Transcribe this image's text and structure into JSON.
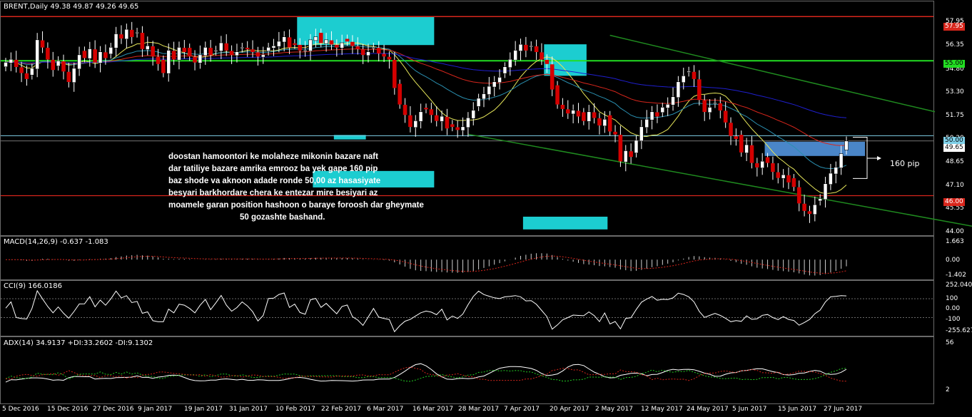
{
  "colors": {
    "bull": "#ffffff",
    "bear": "#d40000",
    "wick": "#ffffff",
    "ma_fast": "#e6e65a",
    "ma_mid": "#2a8fb0",
    "ma_slow": "#d8261c",
    "ma_long": "#1f1fcf",
    "res": "#d8261c",
    "sup_green": "#22dd22",
    "cyan_box": "#1ccdd0",
    "steel_box": "#4a86c8",
    "channel": "#1f8a1f",
    "level_50": "#7fd0e8"
  },
  "main": {
    "title": "BRENT,Daily  49.38 49.87 49.26 49.65",
    "y_ticks": [
      "57.95",
      "56.35",
      "54.80",
      "53.30",
      "51.75",
      "50.20",
      "48.65",
      "47.10",
      "45.55",
      "44.00"
    ],
    "levels": {
      "l5795": "57.95",
      "l5500": "55.00",
      "l5000": "50.00",
      "l4965": "49.65",
      "l4600": "46.00"
    },
    "note_lines": [
      "doostan hamoontori ke molaheze mikonin bazare naft",
      "dar tatiliye  bazare amrika emrooz ba yek gape 160 pip",
      "baz shode va aknoon adade ronde 50,00 az hasasiyate",
      "besyari barkhordare chera ke entezar mire besiyari az",
      "moamele garan  position hashoon o baraye foroosh dar gheymate",
      "50 gozashte bashand."
    ],
    "gap_label": "160 pip"
  },
  "macd": {
    "title": "MACD(14,26,9) -0.637 -1.083",
    "ticks": [
      "1.663",
      "0.00",
      "-1.402"
    ]
  },
  "cci": {
    "title": "CCI(9) 166.0186",
    "ticks": [
      "252.0403",
      "100",
      "0.00",
      "-100",
      "-255.627"
    ]
  },
  "adx": {
    "title": "ADX(14) 34.9137 +DI:33.2602 -DI:9.1302",
    "ticks": [
      "56",
      "2"
    ]
  },
  "dates": [
    "5 Dec 2016",
    "15 Dec 2016",
    "27 Dec 2016",
    "9 Jan 2017",
    "19 Jan 2017",
    "31 Jan 2017",
    "10 Feb 2017",
    "22 Feb 2017",
    "6 Mar 2017",
    "16 Mar 2017",
    "28 Mar 2017",
    "7 Apr 2017",
    "20 Apr 2017",
    "2 May 2017",
    "12 May 2017",
    "24 May 2017",
    "5 Jun 2017",
    "15 Jun 2017",
    "27 Jun 2017"
  ],
  "chart_data": {
    "type": "candlestick",
    "symbol": "BRENT",
    "timeframe": "Daily",
    "last_bar": {
      "open": 49.38,
      "high": 49.87,
      "low": 49.26,
      "close": 49.65
    },
    "y_range": [
      44.0,
      57.95
    ],
    "horizontal_levels": [
      57.95,
      55.0,
      50.0,
      49.65,
      46.0
    ],
    "closes": [
      54.9,
      55.1,
      54.6,
      54.2,
      53.8,
      54.5,
      56.4,
      55.9,
      55.1,
      54.4,
      55.0,
      54.3,
      53.6,
      54.5,
      55.4,
      55.2,
      55.8,
      54.9,
      55.6,
      55.2,
      55.9,
      56.8,
      56.5,
      57.1,
      56.6,
      56.9,
      55.8,
      56.0,
      55.3,
      54.8,
      54.2,
      55.7,
      55.1,
      55.9,
      55.6,
      55.3,
      54.9,
      55.4,
      55.9,
      55.4,
      55.7,
      56.2,
      55.7,
      55.4,
      55.6,
      55.9,
      55.8,
      55.6,
      55.3,
      55.4,
      55.9,
      56.0,
      56.3,
      56.6,
      55.9,
      56.1,
      55.7,
      55.7,
      56.4,
      56.6,
      56.2,
      56.4,
      56.1,
      55.9,
      56.2,
      56.3,
      56.0,
      55.8,
      55.4,
      55.6,
      55.9,
      55.5,
      55.3,
      55.1,
      53.2,
      52.1,
      51.4,
      50.6,
      51.0,
      51.6,
      51.8,
      51.4,
      51.0,
      51.3,
      50.5,
      50.6,
      50.4,
      50.6,
      51.2,
      51.7,
      52.5,
      52.8,
      53.3,
      53.6,
      53.9,
      54.6,
      55.1,
      55.7,
      56.1,
      55.7,
      56.0,
      55.6,
      55.1,
      54.8,
      53.1,
      52.1,
      51.8,
      51.5,
      51.7,
      51.3,
      51.0,
      51.6,
      51.2,
      50.7,
      51.1,
      50.3,
      50.1,
      48.3,
      49.0,
      48.6,
      49.7,
      50.6,
      51.1,
      51.6,
      51.3,
      51.9,
      52.1,
      52.6,
      53.6,
      54.0,
      54.3,
      53.8,
      52.4,
      51.6,
      51.9,
      52.2,
      51.7,
      50.9,
      50.0,
      49.8,
      48.9,
      49.4,
      48.2,
      47.9,
      48.3,
      48.2,
      47.6,
      47.2,
      47.4,
      46.9,
      46.6,
      45.5,
      45.0,
      44.8,
      45.4,
      45.8,
      46.8,
      47.5,
      47.9,
      48.8,
      49.65
    ]
  }
}
